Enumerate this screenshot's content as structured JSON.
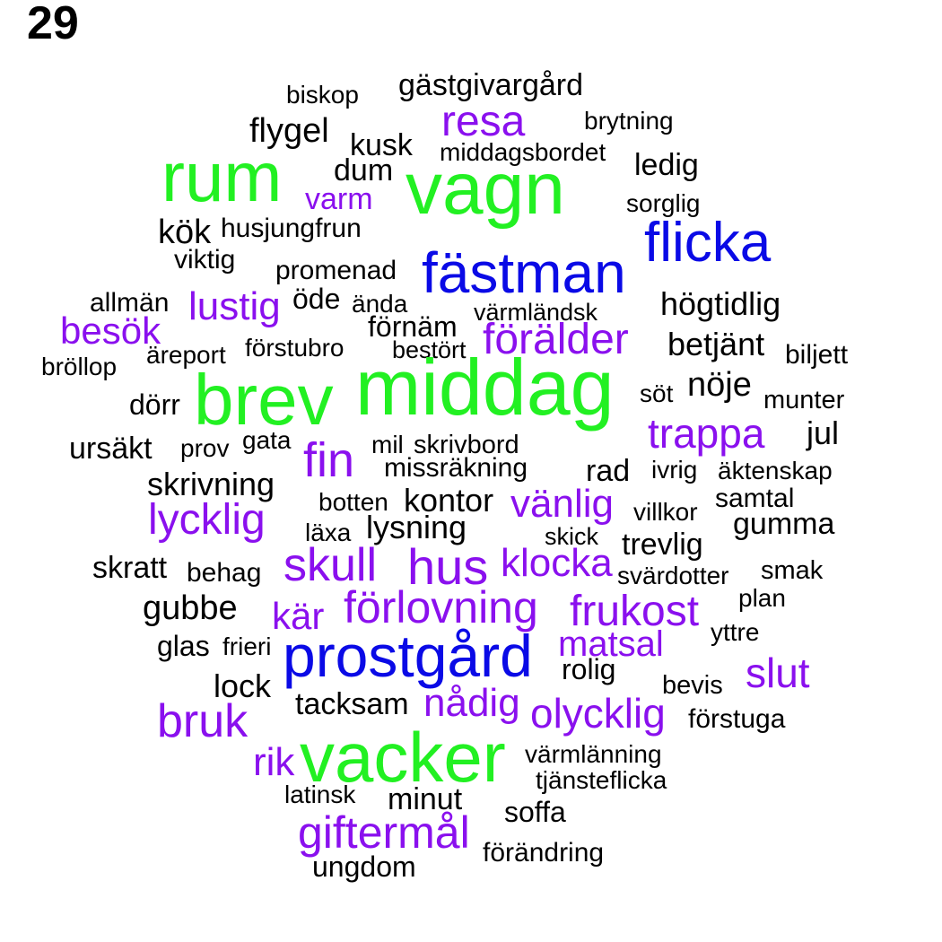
{
  "page_number": "29",
  "colors": {
    "black": "#000000",
    "purple": "#8a10ee",
    "blue": "#0a0ae6",
    "green": "#22f022"
  },
  "words": [
    {
      "text": "biskop",
      "color": "black"
    },
    {
      "text": "gästgivargård",
      "color": "black"
    },
    {
      "text": "resa",
      "color": "purple"
    },
    {
      "text": "brytning",
      "color": "black"
    },
    {
      "text": "flygel",
      "color": "black"
    },
    {
      "text": "kusk",
      "color": "black"
    },
    {
      "text": "middagsbordet",
      "color": "black"
    },
    {
      "text": "ledig",
      "color": "black"
    },
    {
      "text": "rum",
      "color": "green"
    },
    {
      "text": "dum",
      "color": "black"
    },
    {
      "text": "vagn",
      "color": "green"
    },
    {
      "text": "varm",
      "color": "purple"
    },
    {
      "text": "sorglig",
      "color": "black"
    },
    {
      "text": "kök",
      "color": "black"
    },
    {
      "text": "husjungfrun",
      "color": "black"
    },
    {
      "text": "flicka",
      "color": "blue"
    },
    {
      "text": "viktig",
      "color": "black"
    },
    {
      "text": "promenad",
      "color": "black"
    },
    {
      "text": "fästman",
      "color": "blue"
    },
    {
      "text": "allmän",
      "color": "black"
    },
    {
      "text": "lustig",
      "color": "purple"
    },
    {
      "text": "öde",
      "color": "black"
    },
    {
      "text": "ända",
      "color": "black"
    },
    {
      "text": "värmländsk",
      "color": "black"
    },
    {
      "text": "högtidlig",
      "color": "black"
    },
    {
      "text": "besök",
      "color": "purple"
    },
    {
      "text": "förnäm",
      "color": "black"
    },
    {
      "text": "förälder",
      "color": "purple"
    },
    {
      "text": "betjänt",
      "color": "black"
    },
    {
      "text": "äreport",
      "color": "black"
    },
    {
      "text": "förstubro",
      "color": "black"
    },
    {
      "text": "bestört",
      "color": "black"
    },
    {
      "text": "biljett",
      "color": "black"
    },
    {
      "text": "bröllop",
      "color": "black"
    },
    {
      "text": "middag",
      "color": "green"
    },
    {
      "text": "brev",
      "color": "green"
    },
    {
      "text": "nöje",
      "color": "black"
    },
    {
      "text": "söt",
      "color": "black"
    },
    {
      "text": "dörr",
      "color": "black"
    },
    {
      "text": "munter",
      "color": "black"
    },
    {
      "text": "trappa",
      "color": "purple"
    },
    {
      "text": "jul",
      "color": "black"
    },
    {
      "text": "ursäkt",
      "color": "black"
    },
    {
      "text": "prov",
      "color": "black"
    },
    {
      "text": "gata",
      "color": "black"
    },
    {
      "text": "fin",
      "color": "purple"
    },
    {
      "text": "mil",
      "color": "black"
    },
    {
      "text": "skrivbord",
      "color": "black"
    },
    {
      "text": "missräkning",
      "color": "black"
    },
    {
      "text": "rad",
      "color": "black"
    },
    {
      "text": "ivrig",
      "color": "black"
    },
    {
      "text": "äktenskap",
      "color": "black"
    },
    {
      "text": "skrivning",
      "color": "black"
    },
    {
      "text": "botten",
      "color": "black"
    },
    {
      "text": "kontor",
      "color": "black"
    },
    {
      "text": "vänlig",
      "color": "purple"
    },
    {
      "text": "samtal",
      "color": "black"
    },
    {
      "text": "villkor",
      "color": "black"
    },
    {
      "text": "lycklig",
      "color": "purple"
    },
    {
      "text": "läxa",
      "color": "black"
    },
    {
      "text": "lysning",
      "color": "black"
    },
    {
      "text": "gumma",
      "color": "black"
    },
    {
      "text": "skick",
      "color": "black"
    },
    {
      "text": "trevlig",
      "color": "black"
    },
    {
      "text": "skratt",
      "color": "black"
    },
    {
      "text": "behag",
      "color": "black"
    },
    {
      "text": "skull",
      "color": "purple"
    },
    {
      "text": "hus",
      "color": "purple"
    },
    {
      "text": "klocka",
      "color": "purple"
    },
    {
      "text": "svärdotter",
      "color": "black"
    },
    {
      "text": "smak",
      "color": "black"
    },
    {
      "text": "plan",
      "color": "black"
    },
    {
      "text": "gubbe",
      "color": "black"
    },
    {
      "text": "kär",
      "color": "purple"
    },
    {
      "text": "förlovning",
      "color": "purple"
    },
    {
      "text": "frukost",
      "color": "purple"
    },
    {
      "text": "yttre",
      "color": "black"
    },
    {
      "text": "glas",
      "color": "black"
    },
    {
      "text": "frieri",
      "color": "black"
    },
    {
      "text": "matsal",
      "color": "purple"
    },
    {
      "text": "prostgård",
      "color": "blue"
    },
    {
      "text": "slut",
      "color": "purple"
    },
    {
      "text": "rolig",
      "color": "black"
    },
    {
      "text": "lock",
      "color": "black"
    },
    {
      "text": "bevis",
      "color": "black"
    },
    {
      "text": "tacksam",
      "color": "black"
    },
    {
      "text": "nådig",
      "color": "purple"
    },
    {
      "text": "olycklig",
      "color": "purple"
    },
    {
      "text": "bruk",
      "color": "purple"
    },
    {
      "text": "förstuga",
      "color": "black"
    },
    {
      "text": "värmlänning",
      "color": "black"
    },
    {
      "text": "rik",
      "color": "purple"
    },
    {
      "text": "vacker",
      "color": "green"
    },
    {
      "text": "tjänsteflicka",
      "color": "black"
    },
    {
      "text": "latinsk",
      "color": "black"
    },
    {
      "text": "minut",
      "color": "black"
    },
    {
      "text": "soffa",
      "color": "black"
    },
    {
      "text": "giftermål",
      "color": "purple"
    },
    {
      "text": "förändring",
      "color": "black"
    },
    {
      "text": "ungdom",
      "color": "black"
    }
  ]
}
